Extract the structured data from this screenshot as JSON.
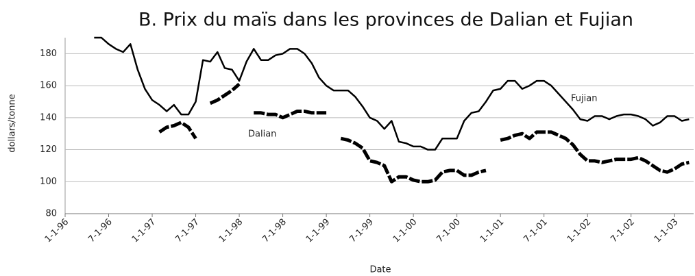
{
  "chart_data": {
    "type": "line",
    "title": "B. Prix du maïs dans les provinces de Dalian et Fujian",
    "xlabel": "Date",
    "ylabel": "dollars/tonne",
    "annotations": [
      "Fujian",
      "Dalian"
    ],
    "x": [
      "1-1-96",
      "2-1-96",
      "3-1-96",
      "4-1-96",
      "5-1-96",
      "6-1-96",
      "7-1-96",
      "8-1-96",
      "9-1-96",
      "10-1-96",
      "11-1-96",
      "12-1-96",
      "1-1-97",
      "2-1-97",
      "3-1-97",
      "4-1-97",
      "5-1-97",
      "6-1-97",
      "7-1-97",
      "8-1-97",
      "9-1-97",
      "10-1-97",
      "11-1-97",
      "12-1-97",
      "1-1-98",
      "2-1-98",
      "3-1-98",
      "4-1-98",
      "5-1-98",
      "6-1-98",
      "7-1-98",
      "8-1-98",
      "9-1-98",
      "10-1-98",
      "11-1-98",
      "12-1-98",
      "1-1-99",
      "2-1-99",
      "3-1-99",
      "4-1-99",
      "5-1-99",
      "6-1-99",
      "7-1-99",
      "8-1-99",
      "9-1-99",
      "10-1-99",
      "11-1-99",
      "12-1-99",
      "1-1-00",
      "2-1-00",
      "3-1-00",
      "4-1-00",
      "5-1-00",
      "6-1-00",
      "7-1-00",
      "8-1-00",
      "9-1-00",
      "10-1-00",
      "11-1-00",
      "12-1-00",
      "1-1-01",
      "2-1-01",
      "3-1-01",
      "4-1-01",
      "5-1-01",
      "6-1-01",
      "7-1-01",
      "8-1-01",
      "9-1-01",
      "10-1-01",
      "11-1-01",
      "12-1-01",
      "1-1-02",
      "2-1-02",
      "3-1-02",
      "4-1-02",
      "5-1-02",
      "6-1-02",
      "7-1-02",
      "8-1-02",
      "9-1-02",
      "10-1-02",
      "11-1-02",
      "12-1-02",
      "1-1-03",
      "2-1-03",
      "3-1-03"
    ],
    "series": [
      {
        "name": "Fujian",
        "color": "#000000",
        "style": "solid",
        "values": [
          null,
          null,
          null,
          null,
          190,
          190,
          186,
          183,
          181,
          186,
          170,
          158,
          151,
          148,
          144,
          148,
          142,
          142,
          150,
          176,
          175,
          181,
          171,
          170,
          163,
          175,
          183,
          176,
          176,
          179,
          180,
          183,
          183,
          180,
          174,
          165,
          160,
          157,
          157,
          157,
          153,
          147,
          140,
          138,
          133,
          138,
          125,
          124,
          122,
          122,
          120,
          120,
          127,
          127,
          127,
          138,
          143,
          144,
          150,
          157,
          158,
          163,
          163,
          158,
          160,
          163,
          163,
          160,
          155,
          150,
          145,
          139,
          138,
          141,
          141,
          139,
          141,
          142,
          142,
          141,
          139,
          135,
          137,
          141,
          141,
          138,
          139
        ]
      },
      {
        "name": "Dalian",
        "color": "#000000",
        "style": "dashed",
        "values": [
          null,
          null,
          null,
          null,
          null,
          null,
          null,
          null,
          null,
          null,
          null,
          null,
          null,
          131,
          134,
          135,
          137,
          134,
          127,
          null,
          149,
          151,
          154,
          157,
          161,
          null,
          143,
          143,
          142,
          142,
          140,
          142,
          144,
          144,
          143,
          143,
          143,
          null,
          127,
          126,
          124,
          121,
          113,
          112,
          110,
          100,
          103,
          103,
          101,
          100,
          100,
          101,
          106,
          107,
          107,
          104,
          104,
          106,
          107,
          null,
          126,
          127,
          129,
          130,
          127,
          131,
          131,
          131,
          129,
          127,
          123,
          117,
          113,
          113,
          112,
          113,
          114,
          114,
          114,
          115,
          113,
          110,
          107,
          106,
          108,
          111,
          112
        ]
      }
    ],
    "xlim": [
      "1-1-96",
      "3-20-03"
    ],
    "xticks": [
      "1-1-96",
      "7-1-96",
      "1-1-97",
      "7-1-97",
      "1-1-98",
      "7-1-98",
      "1-1-99",
      "7-1-99",
      "1-1-00",
      "7-1-00",
      "1-1-01",
      "7-1-01",
      "1-1-02",
      "7-1-02",
      "1-1-03"
    ],
    "ylim": [
      80,
      190
    ],
    "yticks": [
      80,
      100,
      120,
      140,
      160,
      180
    ],
    "grid": true
  }
}
